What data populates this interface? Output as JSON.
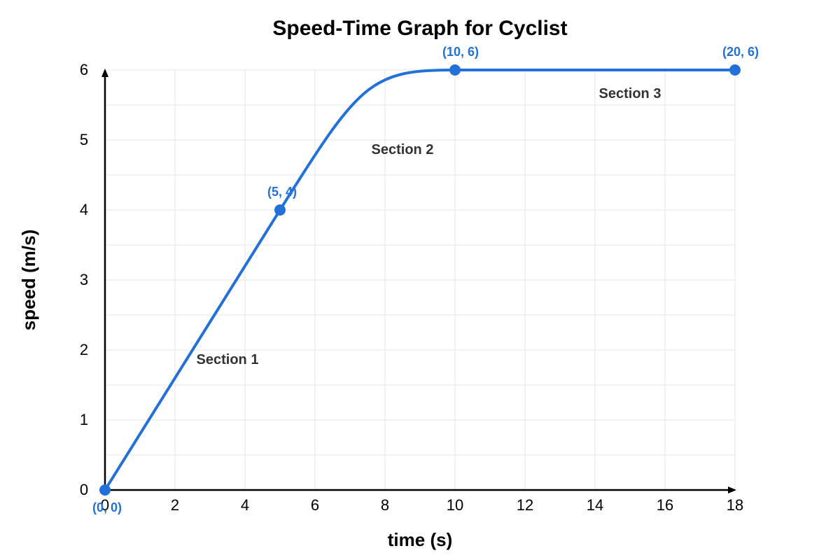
{
  "chart_data": {
    "type": "line",
    "title": "Speed-Time Graph for Cyclist",
    "xlabel": "time (s)",
    "ylabel": "speed (m/s)",
    "xlim": [
      0,
      18
    ],
    "ylim": [
      0,
      6
    ],
    "x_ticks": [
      0,
      2,
      4,
      6,
      8,
      10,
      12,
      14,
      16,
      18
    ],
    "y_ticks": [
      0,
      1,
      2,
      3,
      4,
      5,
      6
    ],
    "grid": true,
    "series": [
      {
        "color": "#2271d8",
        "points": [
          {
            "x": 0,
            "y": 0,
            "label": "(0, 0)"
          },
          {
            "x": 5,
            "y": 4,
            "label": "(5, 4)"
          },
          {
            "x": 10,
            "y": 6,
            "label": "(10, 6)"
          },
          {
            "x": 20,
            "y": 6,
            "label": "(20, 6)"
          }
        ]
      }
    ],
    "annotations": [
      {
        "text": "Section 1",
        "x": 3.5,
        "y": 1.87
      },
      {
        "text": "Section 2",
        "x": 8.5,
        "y": 4.87
      },
      {
        "text": "Section 3",
        "x": 15,
        "y": 5.67
      }
    ]
  }
}
